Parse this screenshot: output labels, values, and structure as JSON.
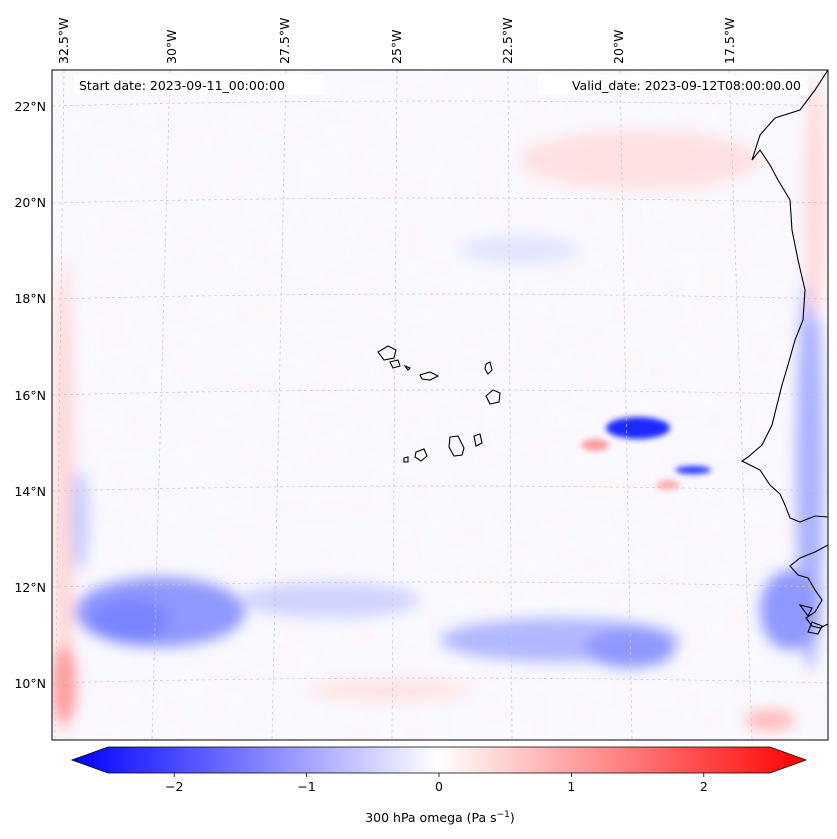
{
  "map": {
    "start_date_text": "Start date: 2023-09-11_00:00:00",
    "valid_date_text": "Valid_date: 2023-09-12T08:00:00.00",
    "lon_labels": [
      "32.5°W",
      "30°W",
      "27.5°W",
      "25°W",
      "22.5°W",
      "20°W",
      "17.5°W"
    ],
    "lat_labels": [
      "22°N",
      "20°N",
      "18°N",
      "16°N",
      "14°N",
      "12°N",
      "10°N"
    ],
    "colors": {
      "negative": "#0000ff",
      "neutral": "#ffffff",
      "positive": "#ff0000",
      "coastline": "#000000",
      "gridline": "#c8c8c8"
    }
  },
  "colorbar": {
    "tick_labels": [
      "−2",
      "−1",
      "0",
      "1",
      "2"
    ],
    "tick_values": [
      -2,
      -1,
      0,
      1,
      2
    ],
    "vmin": -2.6,
    "vmax": 2.6,
    "label_prefix": "300 hPa omega (Pa s",
    "label_exp": "−1",
    "label_suffix": ")"
  }
}
